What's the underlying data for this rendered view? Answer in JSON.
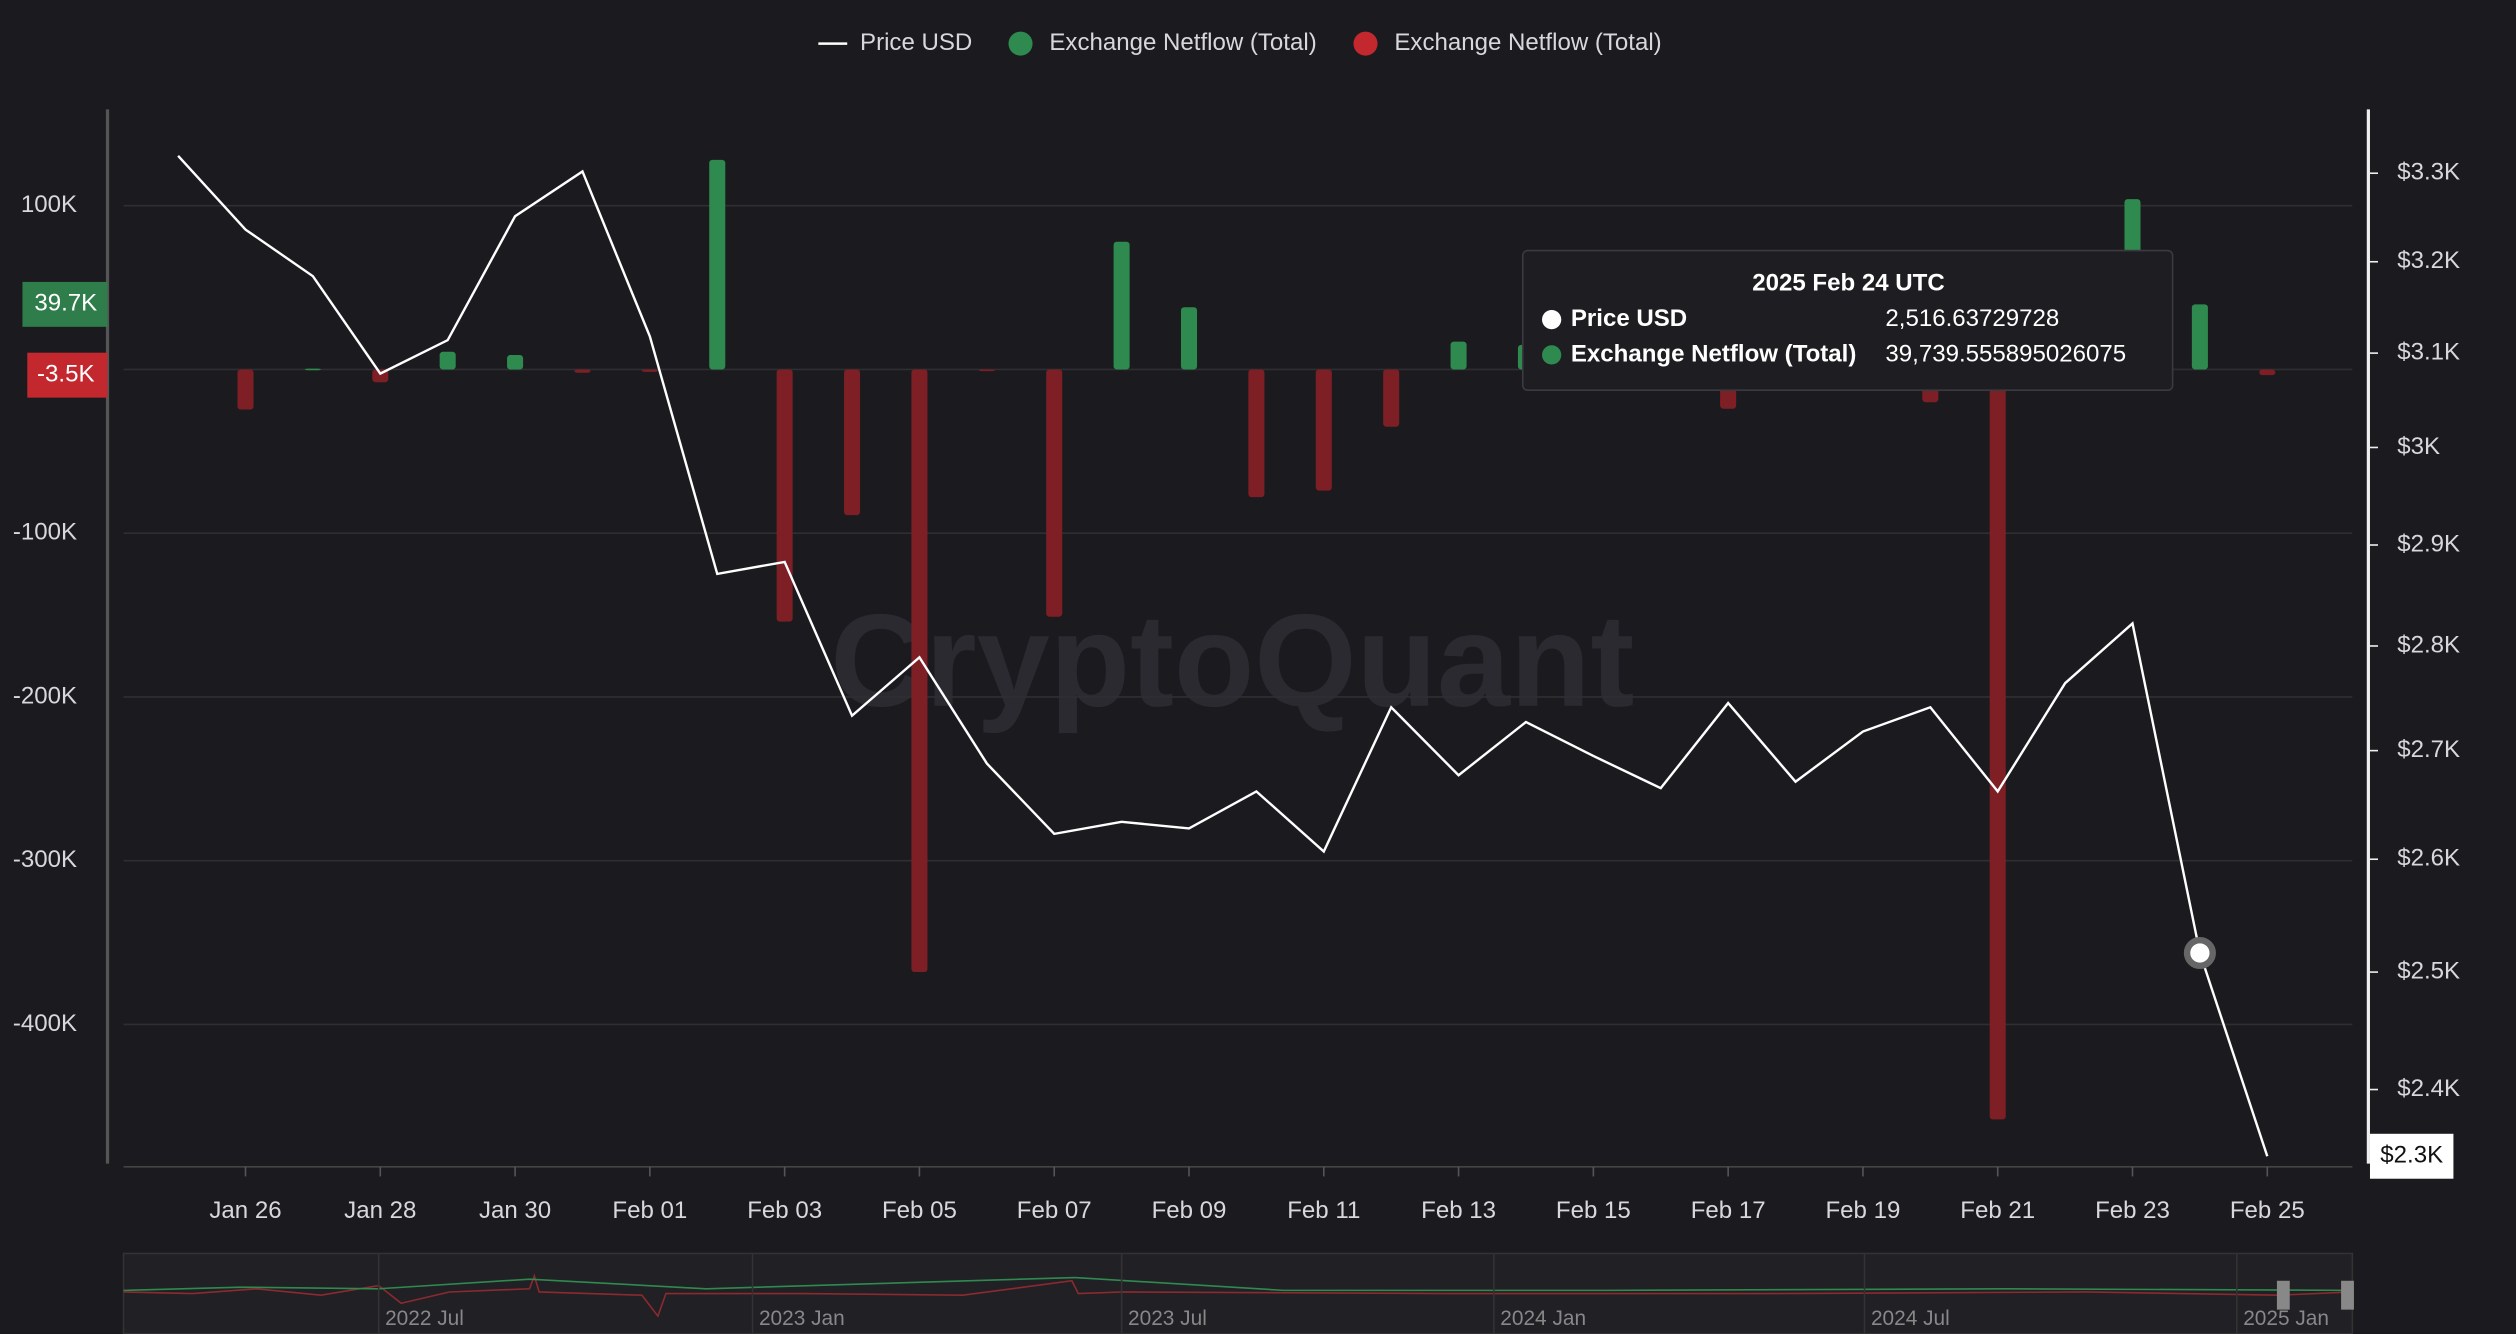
{
  "chart_data": {
    "type": "bar_line",
    "categories": [
      null,
      "Jan 26",
      null,
      "Jan 28",
      null,
      "Jan 30",
      null,
      "Feb 01",
      null,
      "Feb 03",
      null,
      "Feb 05",
      null,
      "Feb 07",
      null,
      "Feb 09",
      null,
      "Feb 11",
      null,
      "Feb 13",
      null,
      "Feb 15",
      null,
      "Feb 17",
      null,
      "Feb 19",
      null,
      "Feb 21",
      null,
      "Feb 23",
      null,
      "Feb 25"
    ],
    "series": [
      {
        "name": "Price USD",
        "type": "line",
        "axis": "y2",
        "color": "#ffffff",
        "values": [
          3320,
          3236,
          3184,
          3078,
          3114,
          3251,
          3302,
          3118,
          2871,
          2883,
          2733,
          2789,
          2688,
          2623,
          2634,
          2628,
          2662,
          2607,
          2741,
          2677,
          2727,
          2695,
          2665,
          2745,
          2671,
          2718,
          2741,
          2662,
          2764,
          2822,
          2516.63729728,
          2345
        ],
        "last_label": "$2.3K"
      },
      {
        "name": "Exchange Netflow (Total)",
        "type": "bar",
        "color": "#2f8a4f",
        "values": [
          null,
          null,
          500,
          null,
          10800,
          8800,
          null,
          null,
          128000,
          null,
          null,
          null,
          null,
          null,
          78000,
          38000,
          null,
          null,
          null,
          17000,
          15000,
          null,
          null,
          null,
          null,
          null,
          null,
          null,
          null,
          104000,
          39739.555895026075,
          null
        ],
        "last_label": "39.7K"
      },
      {
        "name": "Exchange Netflow (Total)",
        "type": "bar",
        "color": "#7e1f25",
        "values": [
          null,
          -24500,
          null,
          -7800,
          null,
          null,
          -2000,
          -1500,
          null,
          -154000,
          -89000,
          -368000,
          -1000,
          -151000,
          null,
          null,
          -78000,
          -74000,
          -35000,
          null,
          null,
          null,
          null,
          -24000,
          null,
          null,
          -20000,
          -458000,
          null,
          null,
          null,
          -3500
        ],
        "last_label": "-3.5K"
      }
    ],
    "ylim": [
      -485000,
      158800
    ],
    "yticks": [
      {
        "value": 100000,
        "label": "100K"
      },
      {
        "value": -100000,
        "label": "-100K"
      },
      {
        "value": -200000,
        "label": "-200K"
      },
      {
        "value": -300000,
        "label": "-300K"
      },
      {
        "value": -400000,
        "label": "-400K"
      }
    ],
    "y2lim": [
      2339,
      3374
    ],
    "y2_log": true,
    "y2ticks": [
      {
        "value": 3300,
        "label": "$3.3K"
      },
      {
        "value": 3200,
        "label": "$3.2K"
      },
      {
        "value": 3100,
        "label": "$3.1K"
      },
      {
        "value": 3000,
        "label": "$3K"
      },
      {
        "value": 2900,
        "label": "$2.9K"
      },
      {
        "value": 2800,
        "label": "$2.8K"
      },
      {
        "value": 2700,
        "label": "$2.7K"
      },
      {
        "value": 2600,
        "label": "$2.6K"
      },
      {
        "value": 2500,
        "label": "$2.5K"
      },
      {
        "value": 2400,
        "label": "$2.4K"
      }
    ],
    "grid": true,
    "legend": "top",
    "watermark": "CryptoQuant",
    "tooltip": {
      "title": "2025 Feb 24 UTC",
      "index": 30,
      "rows": [
        {
          "name": "Price USD",
          "value": "2,516.63729728",
          "color": "#ffffff"
        },
        {
          "name": "Exchange Netflow (Total)",
          "value": "39,739.555895026075",
          "color": "#2f8a4f"
        }
      ]
    },
    "navigator": {
      "labels": [
        "2022 Jul",
        "2023 Jan",
        "2023 Jul",
        "2024 Jan",
        "2024 Jul",
        "2025 Jan"
      ]
    }
  }
}
